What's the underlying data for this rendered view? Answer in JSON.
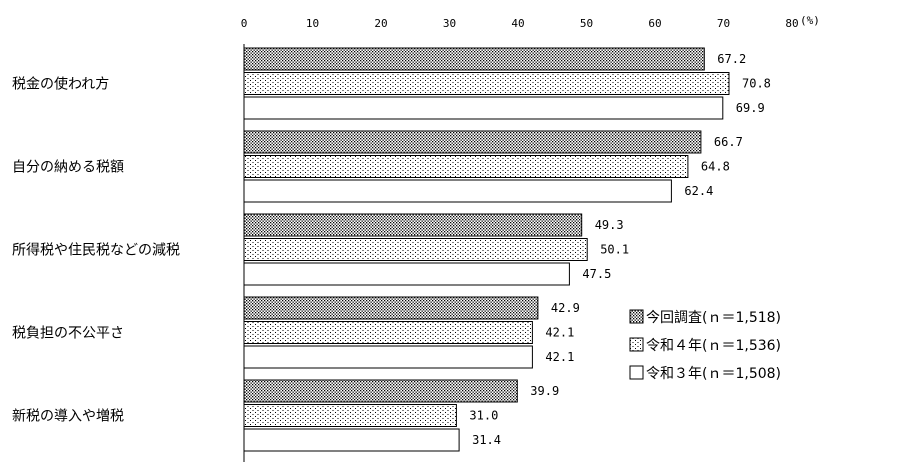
{
  "chart_data": {
    "type": "bar",
    "orientation": "horizontal",
    "unit_label": "(%)",
    "xlim": [
      0,
      80
    ],
    "xticks": [
      "0",
      "10",
      "20",
      "30",
      "40",
      "50",
      "60",
      "70",
      "80"
    ],
    "categories": [
      "税金の使われ方",
      "自分の納める税額",
      "所得税や住民税などの減税",
      "税負担の不公平さ",
      "新税の導入や増税"
    ],
    "series": [
      {
        "name": "今回調査(ｎ＝1,518)",
        "pattern": "dense-dots",
        "values": [
          67.2,
          66.7,
          49.3,
          42.9,
          39.9
        ]
      },
      {
        "name": "令和４年(ｎ＝1,536)",
        "pattern": "sparse-dots",
        "values": [
          70.8,
          64.8,
          50.1,
          42.1,
          31.0
        ]
      },
      {
        "name": "令和３年(ｎ＝1,508)",
        "pattern": "white",
        "values": [
          69.9,
          62.4,
          47.5,
          42.1,
          31.4
        ]
      }
    ],
    "legend_position": "right",
    "grid": false
  }
}
